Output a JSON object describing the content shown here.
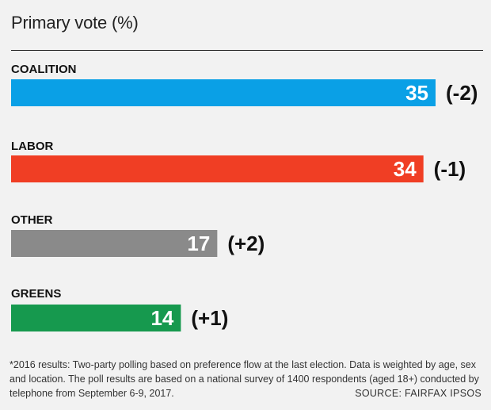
{
  "title": "Primary vote (%)",
  "chart_data": {
    "type": "bar",
    "orientation": "horizontal",
    "title": "Primary vote (%)",
    "xlim": [
      0,
      35
    ],
    "categories": [
      "COALITION",
      "LABOR",
      "OTHER",
      "GREENS"
    ],
    "values": [
      35,
      34,
      17,
      14
    ],
    "changes": [
      "(-2)",
      "(-1)",
      "(+2)",
      "(+1)"
    ],
    "colors": [
      "#0aa0e6",
      "#f03e24",
      "#8a8a8a",
      "#16994e"
    ],
    "grid": false
  },
  "footnote": "*2016 results: Two-party polling based on preference flow at the last election. Data is weighted by age, sex and location. The poll results are based on a national survey of 1400 respondents (aged 18+) conducted by telephone from September 6-9, 2017.",
  "source": "SOURCE: FAIRFAX IPSOS"
}
